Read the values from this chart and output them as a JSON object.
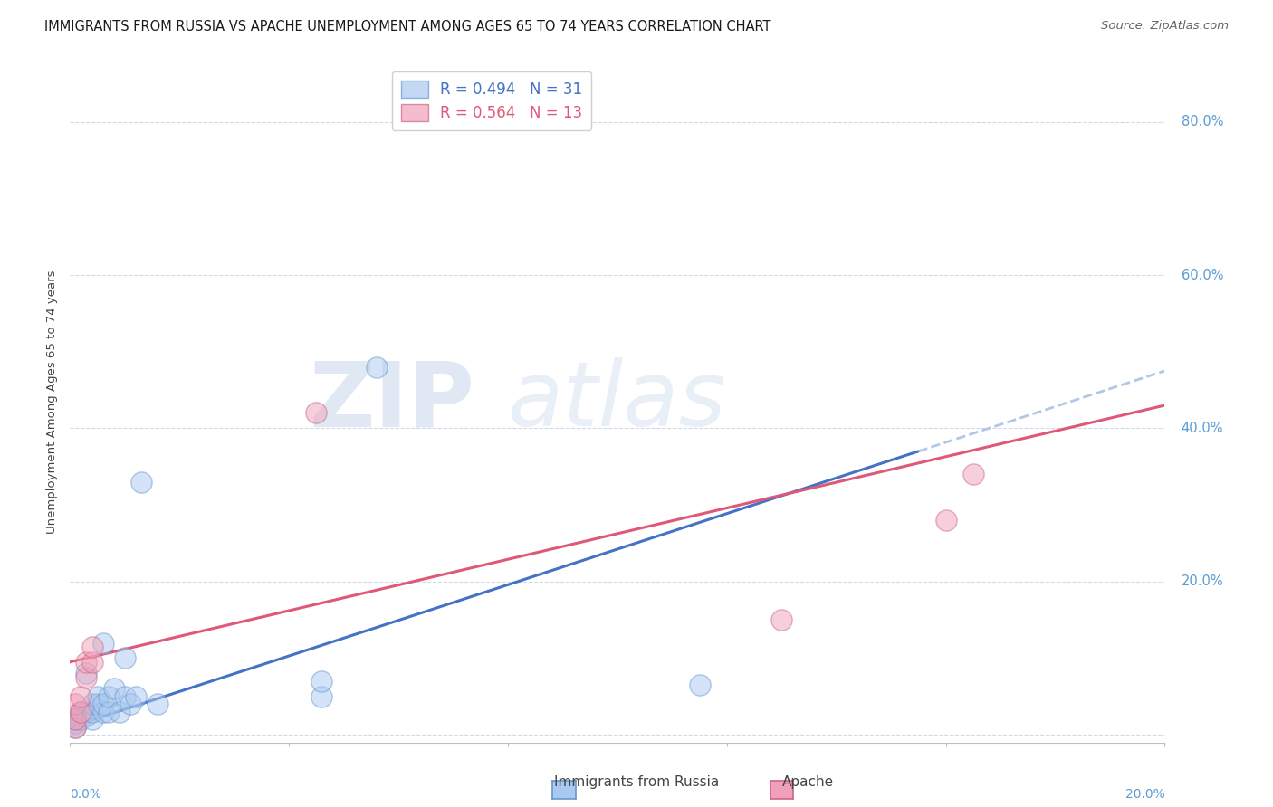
{
  "title": "IMMIGRANTS FROM RUSSIA VS APACHE UNEMPLOYMENT AMONG AGES 65 TO 74 YEARS CORRELATION CHART",
  "source": "Source: ZipAtlas.com",
  "ylabel": "Unemployment Among Ages 65 to 74 years",
  "ytick_labels": [
    "0.0%",
    "20.0%",
    "40.0%",
    "60.0%",
    "80.0%"
  ],
  "ytick_values": [
    0.0,
    0.2,
    0.4,
    0.6,
    0.8
  ],
  "xlim": [
    0.0,
    0.2
  ],
  "ylim": [
    -0.01,
    0.88
  ],
  "russia_scatter_x": [
    0.001,
    0.001,
    0.001,
    0.001,
    0.002,
    0.002,
    0.002,
    0.003,
    0.003,
    0.004,
    0.004,
    0.004,
    0.005,
    0.005,
    0.006,
    0.006,
    0.006,
    0.007,
    0.007,
    0.008,
    0.009,
    0.01,
    0.01,
    0.011,
    0.012,
    0.013,
    0.016,
    0.046,
    0.046,
    0.056,
    0.115
  ],
  "russia_scatter_y": [
    0.01,
    0.015,
    0.02,
    0.025,
    0.02,
    0.025,
    0.03,
    0.025,
    0.08,
    0.02,
    0.03,
    0.04,
    0.04,
    0.05,
    0.03,
    0.04,
    0.12,
    0.03,
    0.05,
    0.06,
    0.03,
    0.05,
    0.1,
    0.04,
    0.05,
    0.33,
    0.04,
    0.05,
    0.07,
    0.48,
    0.065
  ],
  "apache_scatter_x": [
    0.001,
    0.001,
    0.001,
    0.002,
    0.002,
    0.003,
    0.003,
    0.004,
    0.004,
    0.045,
    0.13,
    0.16,
    0.165
  ],
  "apache_scatter_y": [
    0.01,
    0.02,
    0.04,
    0.03,
    0.05,
    0.075,
    0.095,
    0.095,
    0.115,
    0.42,
    0.15,
    0.28,
    0.34
  ],
  "russia_line_x": [
    0.0,
    0.155,
    0.2
  ],
  "russia_line_y": [
    0.01,
    0.37,
    0.475
  ],
  "apache_line_x": [
    0.0,
    0.2
  ],
  "apache_line_y": [
    0.095,
    0.43
  ],
  "scatter_color_russia": "#aac8f0",
  "scatter_edgecolor_russia": "#6699cc",
  "scatter_color_apache": "#f0a0b8",
  "scatter_edgecolor_apache": "#cc6688",
  "line_color_russia": "#4472c4",
  "line_color_apache": "#e05878",
  "line_dash_color": "#b0c8e8",
  "background_color": "#ffffff",
  "title_fontsize": 10.5,
  "source_fontsize": 9.5,
  "ylabel_fontsize": 9.5,
  "axis_label_color": "#5b9bd5",
  "grid_color": "#d0d8ea",
  "scatter_size": 280,
  "scatter_alpha": 0.5,
  "legend_box_color_russia": "#aac8f0",
  "legend_box_edgecolor_russia": "#6699cc",
  "legend_box_color_apache": "#f0a0b8",
  "legend_box_edgecolor_apache": "#cc6688",
  "legend_text_color_russia": "#4472c4",
  "legend_text_color_apache": "#e05878",
  "watermark_zip_color": "#c8d8ea",
  "watermark_atlas_color": "#c8d8ea"
}
